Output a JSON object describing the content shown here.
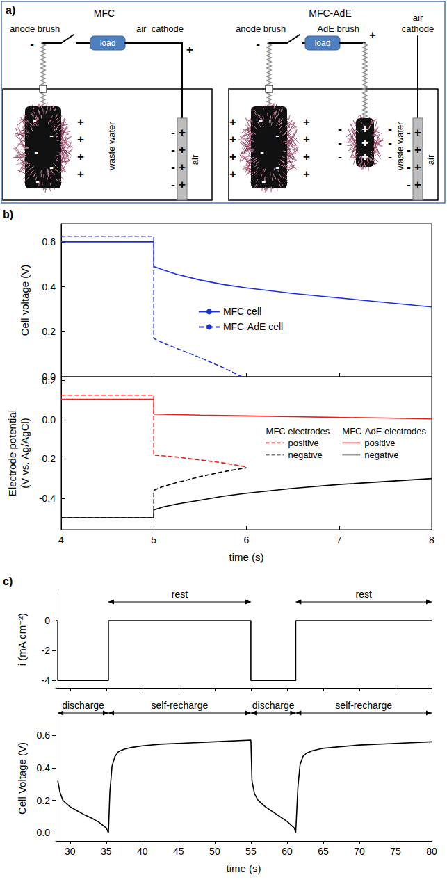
{
  "diagram": {
    "label": "a)",
    "signs": {
      "negative": "-",
      "positive": "+"
    },
    "modules": [
      {
        "title": "MFC",
        "anode": "anode brush",
        "cathode": "air  cathode",
        "load": "load",
        "medium": "waste water",
        "air": "air"
      },
      {
        "title": "MFC-AdE",
        "anode": "anode brush",
        "ade": "AdE brush",
        "cathode": "air cathode",
        "load": "load",
        "medium": "waste water",
        "air": "air"
      }
    ]
  },
  "chart_data": [
    {
      "label": "b)",
      "type": "line",
      "y_label": "Cell voltage (V)",
      "xlim": [
        4,
        8
      ],
      "xticks": [
        4,
        5,
        6,
        7,
        8
      ],
      "ylim": [
        0,
        0.68
      ],
      "yticks": [
        {
          "value": 0,
          "label": "0.0"
        },
        0.2,
        0.4,
        0.6
      ],
      "grid": false,
      "tick_labels": "y",
      "legend": "center",
      "series": [
        {
          "name": "MFC cell",
          "color": "#1a2fe0",
          "line_style": "solid",
          "x": [
            4,
            5,
            5,
            5.1,
            5.25,
            5.5,
            5.75,
            6,
            6.5,
            7,
            7.5,
            8
          ],
          "values": [
            0.6,
            0.6,
            0.49,
            0.475,
            0.455,
            0.43,
            0.41,
            0.395,
            0.37,
            0.35,
            0.33,
            0.31
          ]
        },
        {
          "name": "MFC-AdE cell",
          "color": "#1a2fe0",
          "line_style": "dashed",
          "x": [
            4,
            5,
            5,
            5.1,
            5.25,
            5.5,
            5.75,
            5.95
          ],
          "values": [
            0.625,
            0.625,
            0.17,
            0.15,
            0.125,
            0.085,
            0.04,
            0
          ]
        }
      ]
    },
    {
      "type": "line",
      "x_label": "time (s)",
      "y_label": "Electrode potential (V vs. Ag/AgCl)",
      "xlim": [
        4,
        8
      ],
      "xticks": [
        4,
        5,
        6,
        7,
        8
      ],
      "ylim": [
        -0.56,
        0.22
      ],
      "yticks": [
        -0.4,
        -0.2,
        {
          "value": 0,
          "label": "0.0"
        },
        0.2
      ],
      "grid": false,
      "legend": "right",
      "series": [
        {
          "name": "positive",
          "group": "MFC electrodes",
          "color": "#f01c1c",
          "line_style": "dashed",
          "x": [
            4,
            5,
            5,
            5.25,
            5.5,
            5.75,
            6
          ],
          "values": [
            0.125,
            0.125,
            -0.18,
            -0.19,
            -0.205,
            -0.22,
            -0.24
          ]
        },
        {
          "name": "negative",
          "group": "MFC electrodes",
          "color": "#000000",
          "line_style": "dashed",
          "x": [
            4,
            5,
            5,
            5.1,
            5.25,
            5.5,
            5.75,
            6
          ],
          "values": [
            -0.5,
            -0.5,
            -0.36,
            -0.34,
            -0.32,
            -0.29,
            -0.265,
            -0.245
          ]
        },
        {
          "name": "positive",
          "group": "MFC-AdE electrodes",
          "color": "#f01c1c",
          "line_style": "solid",
          "x": [
            4,
            5,
            5,
            5.25,
            5.5,
            6,
            6.5,
            7,
            7.5,
            8
          ],
          "values": [
            0.105,
            0.105,
            0.03,
            0.027,
            0.024,
            0.02,
            0.016,
            0.012,
            0.009,
            0.005
          ]
        },
        {
          "name": "negative",
          "group": "MFC-AdE electrodes",
          "color": "#000000",
          "line_style": "solid",
          "x": [
            4,
            5,
            5,
            5.1,
            5.25,
            5.5,
            5.75,
            6,
            6.5,
            7,
            7.5,
            8
          ],
          "values": [
            -0.5,
            -0.5,
            -0.46,
            -0.445,
            -0.43,
            -0.41,
            -0.39,
            -0.375,
            -0.35,
            -0.33,
            -0.315,
            -0.3
          ]
        }
      ]
    },
    {
      "label": "c)",
      "type": "line",
      "y_label": "i (mA cm⁻²)",
      "xlim": [
        28,
        80
      ],
      "xticks": [
        30,
        35,
        40,
        45,
        50,
        55,
        60,
        65,
        70,
        75,
        80
      ],
      "ylim": [
        -4.5,
        2
      ],
      "yticks": [
        -4,
        -2,
        0
      ],
      "grid": false,
      "tick_labels": "y",
      "annotations": [
        {
          "text": "rest",
          "x": [
            35.3,
            55
          ]
        },
        {
          "text": "rest",
          "x": [
            61.2,
            80
          ]
        }
      ],
      "series": [
        {
          "color": "#000000",
          "line_style": "solid",
          "x": [
            28,
            28.3,
            28.3,
            35.3,
            35.3,
            55,
            55,
            61.2,
            61.2,
            80
          ],
          "values": [
            0,
            0,
            -4,
            -4,
            0,
            0,
            -4,
            -4,
            0,
            0
          ]
        }
      ]
    },
    {
      "type": "line",
      "x_label": "time (s)",
      "y_label": "Cell Voltage (V)",
      "xlim": [
        28,
        80
      ],
      "xticks": [
        30,
        35,
        40,
        45,
        50,
        55,
        60,
        65,
        70,
        75,
        80
      ],
      "ylim": [
        -0.05,
        0.72
      ],
      "yticks": [
        {
          "value": 0,
          "label": "0.0"
        },
        0.2,
        0.4,
        0.6
      ],
      "grid": false,
      "annotations": [
        {
          "text": "discharge",
          "x": [
            28.3,
            35.3
          ]
        },
        {
          "text": "self-recharge",
          "x": [
            35.3,
            55
          ]
        },
        {
          "text": "discharge",
          "x": [
            55,
            61.2
          ]
        },
        {
          "text": "self-recharge",
          "x": [
            61.2,
            80
          ]
        }
      ],
      "series": [
        {
          "color": "#000000",
          "line_style": "solid",
          "x": [
            28.3,
            28.6,
            29,
            29.5,
            30,
            31,
            32,
            33,
            34,
            35,
            35.3,
            35.5,
            35.8,
            36.2,
            36.7,
            37.5,
            38.5,
            40,
            42.5,
            45,
            50,
            55,
            55.15,
            55.5,
            56,
            57,
            58,
            59,
            60,
            61,
            61.2,
            61.5,
            61.8,
            62.2,
            62.7,
            63.5,
            65,
            67.5,
            70,
            75,
            80
          ],
          "values": [
            0.32,
            0.25,
            0.2,
            0.18,
            0.16,
            0.135,
            0.11,
            0.09,
            0.065,
            0.03,
            0,
            0.25,
            0.41,
            0.47,
            0.5,
            0.515,
            0.525,
            0.535,
            0.545,
            0.55,
            0.56,
            0.57,
            0.32,
            0.24,
            0.2,
            0.16,
            0.13,
            0.1,
            0.07,
            0.03,
            0,
            0.28,
            0.42,
            0.47,
            0.49,
            0.505,
            0.52,
            0.53,
            0.54,
            0.55,
            0.56
          ]
        }
      ]
    }
  ]
}
